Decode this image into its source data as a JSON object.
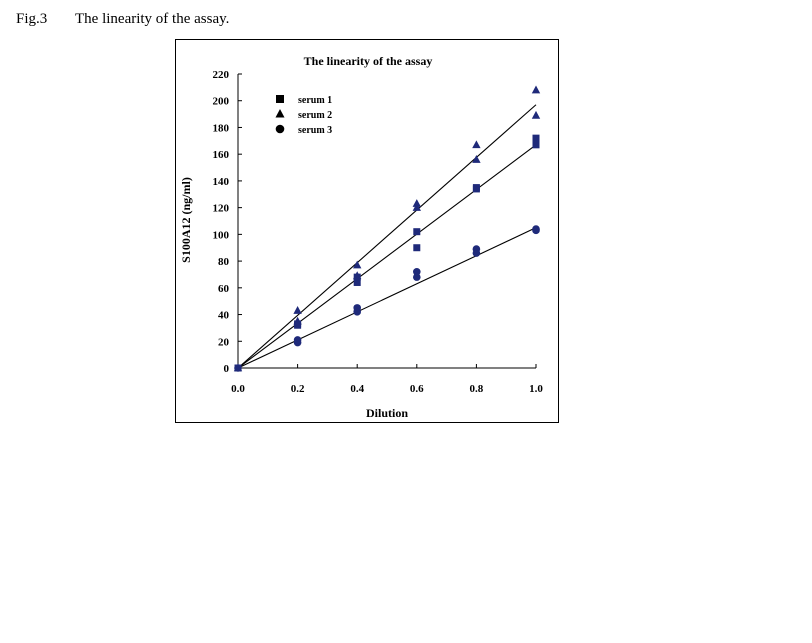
{
  "figure": {
    "label": "Fig.3",
    "caption": "The linearity of the assay."
  },
  "chart_data": {
    "type": "scatter",
    "title": "The linearity of the assay",
    "xlabel": "Dilution",
    "ylabel": "S100A12  (ng/ml)",
    "xlim": [
      0,
      1.0
    ],
    "ylim": [
      0,
      220
    ],
    "x_ticks": [
      "0.0",
      "0.2",
      "0.4",
      "0.6",
      "0.8",
      "1.0"
    ],
    "y_ticks": [
      "0",
      "20",
      "40",
      "60",
      "80",
      "100",
      "120",
      "140",
      "160",
      "180",
      "200",
      "220"
    ],
    "grid": false,
    "legend_position": "top-left",
    "series_color": "#1f2a7a",
    "series": [
      {
        "name": "serum 1",
        "marker": "square",
        "points": [
          [
            0,
            0
          ],
          [
            0.2,
            32
          ],
          [
            0.2,
            33
          ],
          [
            0.4,
            64
          ],
          [
            0.4,
            68
          ],
          [
            0.6,
            90
          ],
          [
            0.6,
            102
          ],
          [
            0.8,
            134
          ],
          [
            0.8,
            135
          ],
          [
            1.0,
            167
          ],
          [
            1.0,
            172
          ]
        ],
        "fit": [
          [
            0,
            0
          ],
          [
            1.0,
            167
          ]
        ]
      },
      {
        "name": "serum 2",
        "marker": "triangle",
        "points": [
          [
            0,
            0
          ],
          [
            0.2,
            35
          ],
          [
            0.2,
            43
          ],
          [
            0.4,
            77
          ],
          [
            0.4,
            69
          ],
          [
            0.6,
            120
          ],
          [
            0.6,
            123
          ],
          [
            0.8,
            156
          ],
          [
            0.8,
            167
          ],
          [
            1.0,
            189
          ],
          [
            1.0,
            208
          ]
        ],
        "fit": [
          [
            0,
            0
          ],
          [
            1.0,
            197
          ]
        ]
      },
      {
        "name": "serum 3",
        "marker": "circle",
        "points": [
          [
            0,
            0
          ],
          [
            0.2,
            19
          ],
          [
            0.2,
            21
          ],
          [
            0.4,
            42
          ],
          [
            0.4,
            45
          ],
          [
            0.6,
            68
          ],
          [
            0.6,
            72
          ],
          [
            0.8,
            86
          ],
          [
            0.8,
            89
          ],
          [
            1.0,
            103
          ],
          [
            1.0,
            104
          ]
        ],
        "fit": [
          [
            0,
            0
          ],
          [
            1.0,
            105
          ]
        ]
      }
    ]
  }
}
